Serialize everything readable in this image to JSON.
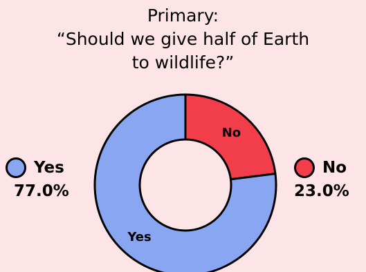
{
  "chart_data": {
    "type": "pie",
    "title_lines": [
      "Primary:",
      "“Should we give half of Earth",
      "to wildlife?”"
    ],
    "categories": [
      "No",
      "Yes"
    ],
    "values": [
      23.0,
      77.0
    ],
    "slice_labels": [
      "No",
      "Yes"
    ],
    "legend": [
      {
        "label": "Yes",
        "percent": "77.0%",
        "color": "#88a6f1"
      },
      {
        "label": "No",
        "percent": "23.0%",
        "color": "#f23d4b"
      }
    ],
    "colors": {
      "No": "#f23d4b",
      "Yes": "#88a6f1"
    },
    "donut": true
  }
}
